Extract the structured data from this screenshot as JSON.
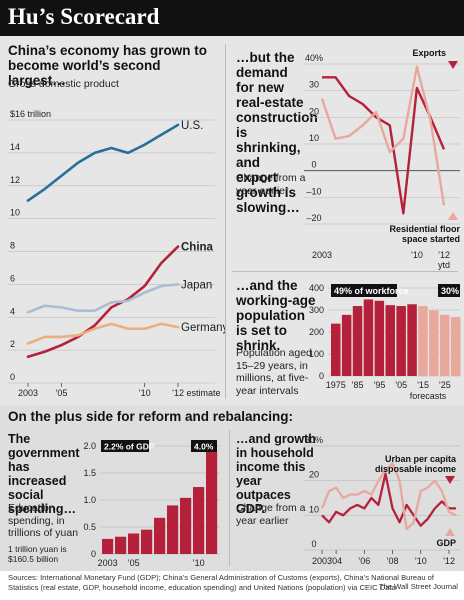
{
  "page": {
    "title": "Hu’s Scorecard",
    "bottom_heading": "On the plus side for reform and rebalancing:",
    "sources": "Sources: International Monetary Fund (GDP); China’s General Administration of Customs (exports), China’s National Bureau of Statistics (real estate, GDP, household income, education spending) and United Nations (population) via CEIC Data",
    "publisher": "The Wall Street Journal"
  },
  "gdp_panel": {
    "heading": "China’s economy has grown to become world’s second largest…",
    "subheading": "Gross domestic product"
  },
  "construction_panel": {
    "heading": "…but the demand for new real-estate construction is shrinking, and export growth is slowing…",
    "subheading": "Change from a year earlier"
  },
  "population_panel": {
    "heading": "…and the working-age population is set to shrink.",
    "subheading": "Population aged 15–29 years, in millions, at five-year intervals"
  },
  "education_panel": {
    "heading": "The government has increased social spending…",
    "subheading": "Education spending, in trillions of yuan",
    "note": "1 trillion yuan is $160.5 billion"
  },
  "income_panel": {
    "heading": "…and growth in household income this year outpaces GDP.",
    "subheading": "Change from a year earlier"
  },
  "chart_data": [
    {
      "type": "line",
      "x": [
        2003,
        2004,
        2005,
        2006,
        2007,
        2008,
        2009,
        2010,
        2011,
        2012
      ],
      "series": [
        {
          "name": "U.S.",
          "color": "#2a6f97",
          "values": [
            11.1,
            11.8,
            12.6,
            13.4,
            14.0,
            14.3,
            14.0,
            14.5,
            15.1,
            15.7
          ]
        },
        {
          "name": "China",
          "color": "#b5213b",
          "values": [
            1.6,
            1.9,
            2.3,
            2.8,
            3.5,
            4.6,
            5.1,
            5.9,
            7.3,
            8.3
          ]
        },
        {
          "name": "Japan",
          "color": "#a9bdd6",
          "values": [
            4.3,
            4.7,
            4.6,
            4.4,
            4.4,
            4.9,
            5.0,
            5.5,
            5.9,
            6.0
          ]
        },
        {
          "name": "Germany",
          "color": "#e8b07f",
          "values": [
            2.4,
            2.8,
            2.8,
            2.9,
            3.3,
            3.6,
            3.3,
            3.3,
            3.6,
            3.4
          ]
        }
      ],
      "ylim": [
        0,
        16
      ],
      "yticks": [
        0,
        2,
        4,
        6,
        8,
        10,
        12,
        14,
        16
      ],
      "ytick_labels": [
        "0",
        "2",
        "4",
        "6",
        "8",
        "10",
        "12",
        "14",
        "$16 trillion"
      ],
      "xtick_labels": [
        {
          "x": 2003,
          "label": "2003"
        },
        {
          "x": 2005,
          "label": "’05"
        },
        {
          "x": 2010,
          "label": "’10"
        },
        {
          "x": 2012,
          "label": "’12 estimate"
        }
      ]
    },
    {
      "type": "line",
      "x": [
        2003,
        2004,
        2005,
        2006,
        2007,
        2008,
        2009,
        2010,
        2011,
        2012
      ],
      "series": [
        {
          "name": "Exports",
          "color": "#b5213b",
          "values": [
            35,
            35,
            28,
            25,
            20,
            17,
            -16,
            31,
            20,
            8
          ]
        },
        {
          "name": "Residential floor space started",
          "color": "#e8a99c",
          "values": [
            27,
            12,
            13,
            17,
            22,
            7,
            12,
            39,
            19,
            -13
          ]
        }
      ],
      "ylim": [
        -20,
        40
      ],
      "yticks": [
        -20,
        -10,
        0,
        10,
        20,
        30,
        40
      ],
      "ytick_labels": [
        "–20",
        "–10",
        "0",
        "10",
        "20",
        "30",
        "40%"
      ],
      "xtick_labels": [
        {
          "x": 2003,
          "label": "2003"
        },
        {
          "x": 2010,
          "label": "’10"
        },
        {
          "x": 2012,
          "label": "’12"
        }
      ],
      "annotations": [
        "ytd"
      ]
    },
    {
      "type": "bar",
      "categories": [
        "1975",
        "1980",
        "1985",
        "1990",
        "1995",
        "2000",
        "2005",
        "2010",
        "2015",
        "2020",
        "2025",
        "2030"
      ],
      "values": [
        238,
        278,
        318,
        348,
        342,
        322,
        318,
        326,
        318,
        298,
        278,
        268
      ],
      "forecast_from_index": 8,
      "colors": {
        "actual": "#b5213b",
        "forecast": "#e8a99c"
      },
      "ylim": [
        0,
        400
      ],
      "yticks": [
        0,
        100,
        200,
        300,
        400
      ],
      "xtick_labels": [
        "1975",
        "’85",
        "’95",
        "’05",
        "’15",
        "’25"
      ],
      "annotations": [
        "49% of workforce",
        "30%",
        "forecasts"
      ]
    },
    {
      "type": "bar",
      "categories": [
        "2003",
        "2004",
        "2005",
        "2006",
        "2007",
        "2008",
        "2009",
        "2010",
        "2011"
      ],
      "values": [
        0.28,
        0.32,
        0.38,
        0.45,
        0.67,
        0.9,
        1.04,
        1.24,
        1.9
      ],
      "colors": {
        "bars": "#b5213b"
      },
      "ylim": [
        0,
        2.0
      ],
      "yticks": [
        0,
        0.5,
        1.0,
        1.5,
        2.0
      ],
      "ytick_labels": [
        "0",
        "0.5",
        "1.0",
        "1.5",
        "2.0"
      ],
      "xtick_labels": [
        {
          "x": 2003,
          "label": "2003"
        },
        {
          "x": 2005,
          "label": "’05"
        },
        {
          "x": 2010,
          "label": "’10"
        }
      ],
      "annotations": [
        "2.2% of GDP",
        "4.0%"
      ]
    },
    {
      "type": "line",
      "x": [
        2003.0,
        2003.5,
        2004.0,
        2004.5,
        2005.0,
        2005.5,
        2006.0,
        2006.5,
        2007.0,
        2007.5,
        2008.0,
        2008.5,
        2009.0,
        2009.5,
        2010.0,
        2010.5,
        2011.0,
        2011.5,
        2012.0,
        2012.5
      ],
      "series": [
        {
          "name": "Urban per capita disposable income",
          "color": "#b5213b",
          "values": [
            10,
            8,
            11,
            10,
            12,
            13,
            12,
            15,
            13,
            22,
            12,
            8,
            13,
            10,
            7,
            9,
            12,
            14,
            12,
            12
          ]
        },
        {
          "name": "GDP",
          "color": "#e8a99c",
          "values": [
            12,
            17,
            18,
            15,
            16,
            16,
            17,
            16,
            20,
            23,
            25,
            20,
            6,
            8,
            17,
            18,
            20,
            17,
            11,
            10
          ]
        }
      ],
      "ylim": [
        0,
        30
      ],
      "yticks": [
        0,
        10,
        20,
        30
      ],
      "ytick_labels": [
        "0",
        "10",
        "20",
        "30%"
      ],
      "xtick_labels": [
        {
          "x": 2003,
          "label": "2003"
        },
        {
          "x": 2004,
          "label": "’04"
        },
        {
          "x": 2006,
          "label": "’06"
        },
        {
          "x": 2008,
          "label": "’08"
        },
        {
          "x": 2010,
          "label": "’10"
        },
        {
          "x": 2012,
          "label": "’12"
        }
      ]
    }
  ]
}
